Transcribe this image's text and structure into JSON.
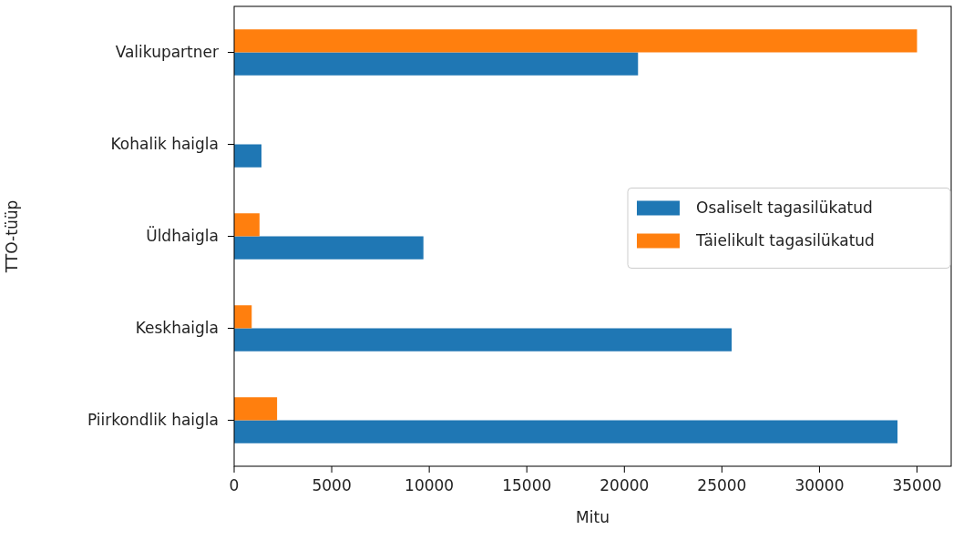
{
  "chart_data": {
    "type": "bar",
    "orientation": "horizontal",
    "xlabel": "Mitu",
    "ylabel": "TTO-tüüp",
    "categories": [
      "Valikupartner",
      "Kohalik haigla",
      "Üldhaigla",
      "Keskhaigla",
      "Piirkondlik haigla"
    ],
    "series": [
      {
        "name": "Osaliselt tagasilükatud",
        "color": "#1f77b4",
        "values": [
          20700,
          1400,
          9700,
          25500,
          34000
        ]
      },
      {
        "name": "Täielikult tagasilükatud",
        "color": "#ff7f0e",
        "values": [
          35000,
          null,
          1300,
          900,
          2200
        ]
      }
    ],
    "xlim": [
      0,
      36750
    ],
    "xticks": [
      0,
      5000,
      10000,
      15000,
      20000,
      25000,
      30000,
      35000
    ],
    "grid": false,
    "legend": "right"
  }
}
